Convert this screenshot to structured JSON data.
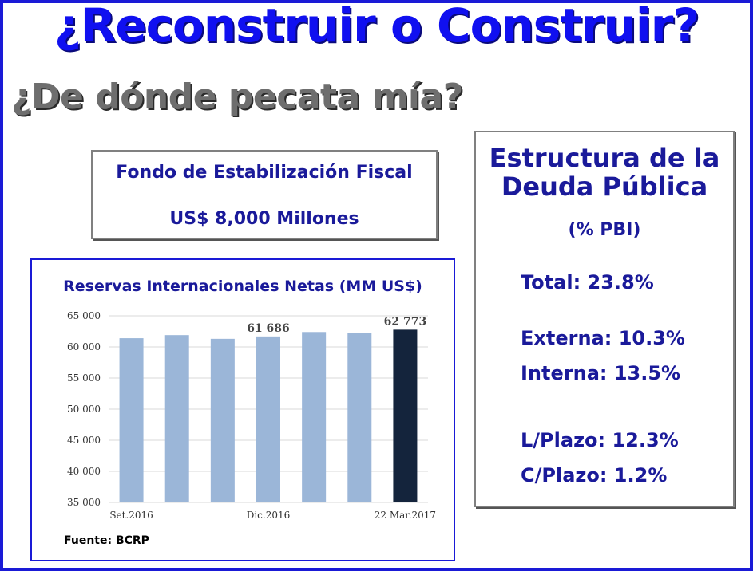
{
  "title": "¿Reconstruir o Construir?",
  "subtitle": "¿De dónde pecata mía?",
  "fund": {
    "line1": "Fondo de Estabilización Fiscal",
    "line2": "US$ 8,000 Millones"
  },
  "debt": {
    "title_line1": "Estructura de la",
    "title_line2": "Deuda Pública",
    "unit": "(% PBI)",
    "total": "Total: 23.8%",
    "externa": "Externa: 10.3%",
    "interna": "Interna: 13.5%",
    "largo": "L/Plazo: 12.3%",
    "corto": "C/Plazo: 1.2%"
  },
  "source": "Fuente: BCRP",
  "colors": {
    "bar": "#9bb6d8",
    "bar_highlight": "#14243c",
    "title_blue": "#1010f0"
  },
  "chart_data": {
    "type": "bar",
    "title": "Reservas Internacionales Netas (MM US$)",
    "values": [
      61400,
      61900,
      61300,
      61686,
      62400,
      62200,
      62773
    ],
    "x_labels": [
      "Set.2016",
      "",
      "",
      "Dic.2016",
      "",
      "",
      "22 Mar.2017"
    ],
    "data_labels": [
      "",
      "",
      "",
      "61 686",
      "",
      "",
      "62 773"
    ],
    "highlight_index": 6,
    "ylim": [
      35000,
      65000
    ],
    "y_ticks": [
      "35 000",
      "40 000",
      "45 000",
      "50 000",
      "55 000",
      "60 000",
      "65 000"
    ],
    "y_tick_values": [
      35000,
      40000,
      45000,
      50000,
      55000,
      60000,
      65000
    ],
    "grid": true
  }
}
